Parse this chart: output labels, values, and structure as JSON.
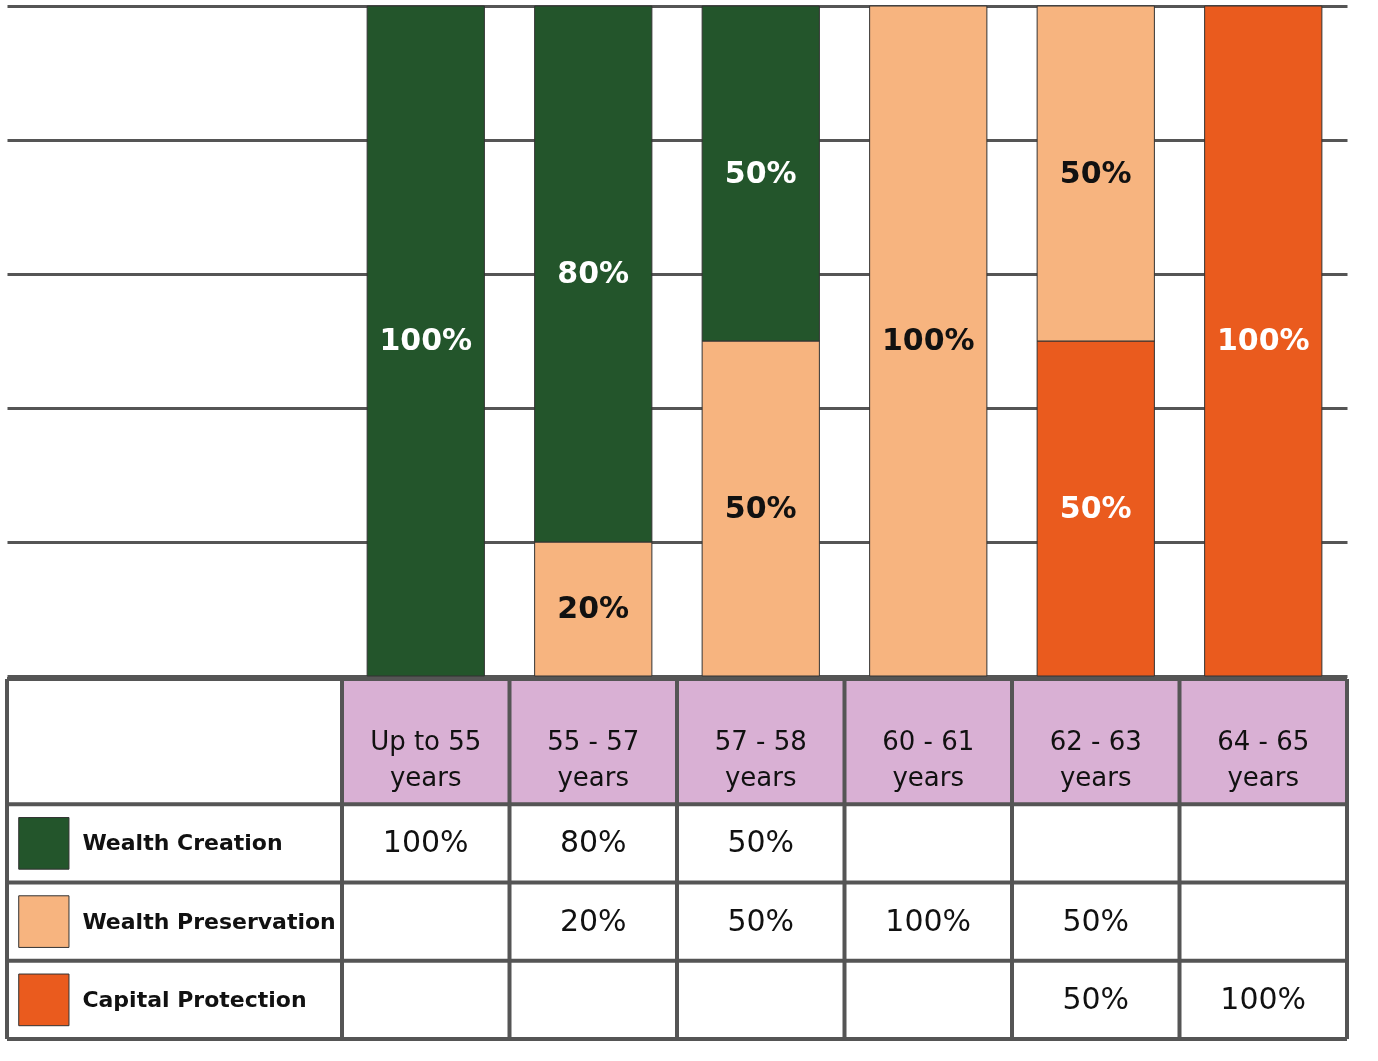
{
  "chart_data": {
    "type": "bar",
    "stacked": true,
    "categories": [
      "Up to 55 years",
      "55 - 57 years",
      "57 - 58 years",
      "60 - 61 years",
      "62 - 63 years",
      "64 - 65 years"
    ],
    "series": [
      {
        "name": "Capital Protection",
        "color": "#ea5b1e",
        "values": [
          null,
          null,
          null,
          null,
          50,
          100
        ],
        "value_labels": [
          null,
          null,
          null,
          null,
          "50%",
          "100%"
        ]
      },
      {
        "name": "Wealth Preservation",
        "color": "#f7b47f",
        "values": [
          null,
          20,
          50,
          100,
          50,
          null
        ],
        "value_labels": [
          null,
          "20%",
          "50%",
          "100%",
          "50%",
          null
        ]
      },
      {
        "name": "Wealth Creation",
        "color": "#23552b",
        "values": [
          100,
          80,
          50,
          null,
          null,
          null
        ],
        "value_labels": [
          "100%",
          "80%",
          "50%",
          null,
          null,
          null
        ]
      }
    ],
    "ylim": [
      0,
      100
    ],
    "yticks": [
      {
        "value": 0,
        "label": null
      },
      {
        "value": 20,
        "label": null
      },
      {
        "value": 40,
        "label": null
      },
      {
        "value": 60,
        "label": null
      },
      {
        "value": 80,
        "label": null
      },
      {
        "value": 100,
        "label": null
      }
    ],
    "grid": "y",
    "legend": "bottom"
  }
}
